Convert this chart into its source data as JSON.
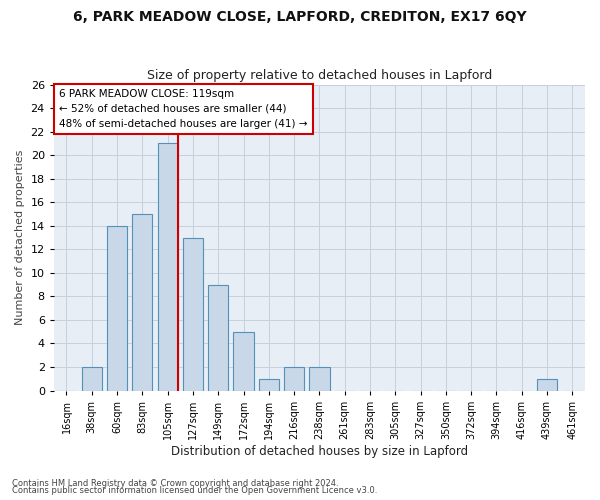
{
  "title1": "6, PARK MEADOW CLOSE, LAPFORD, CREDITON, EX17 6QY",
  "title2": "Size of property relative to detached houses in Lapford",
  "xlabel": "Distribution of detached houses by size in Lapford",
  "ylabel": "Number of detached properties",
  "categories": [
    "16sqm",
    "38sqm",
    "60sqm",
    "83sqm",
    "105sqm",
    "127sqm",
    "149sqm",
    "172sqm",
    "194sqm",
    "216sqm",
    "238sqm",
    "261sqm",
    "283sqm",
    "305sqm",
    "327sqm",
    "350sqm",
    "372sqm",
    "394sqm",
    "416sqm",
    "439sqm",
    "461sqm"
  ],
  "values": [
    0,
    2,
    14,
    15,
    21,
    13,
    9,
    5,
    1,
    2,
    2,
    0,
    0,
    0,
    0,
    0,
    0,
    0,
    0,
    1,
    0
  ],
  "bar_color": "#c8d8e8",
  "bar_edge_color": "#5590b8",
  "annotation_text": "6 PARK MEADOW CLOSE: 119sqm\n← 52% of detached houses are smaller (44)\n48% of semi-detached houses are larger (41) →",
  "annotation_box_color": "#ffffff",
  "annotation_box_edge": "#cc0000",
  "red_line_color": "#cc0000",
  "footnote1": "Contains HM Land Registry data © Crown copyright and database right 2024.",
  "footnote2": "Contains public sector information licensed under the Open Government Licence v3.0.",
  "bg_color": "#ffffff",
  "plot_bg_color": "#e8eef5",
  "grid_color": "#c8d0dc",
  "ylim": [
    0,
    26
  ],
  "yticks": [
    0,
    2,
    4,
    6,
    8,
    10,
    12,
    14,
    16,
    18,
    20,
    22,
    24,
    26
  ],
  "title1_fontsize": 10,
  "title2_fontsize": 9
}
